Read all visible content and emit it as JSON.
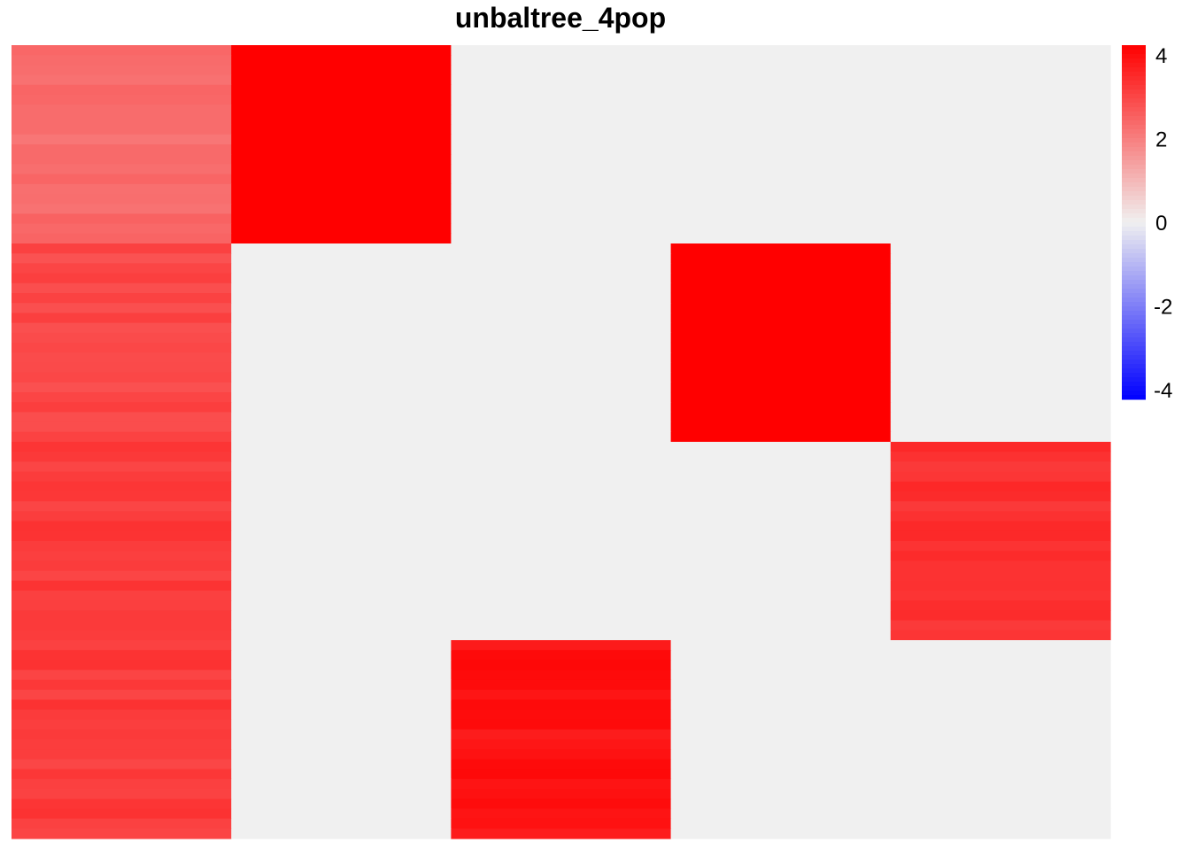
{
  "chart_data": {
    "type": "heatmap",
    "title": "unbaltree_4pop",
    "n_columns": 5,
    "row_blocks": [
      {
        "rows": 20,
        "values": [
          2.2,
          4.0,
          0,
          0,
          0
        ]
      },
      {
        "rows": 20,
        "values": [
          2.8,
          0,
          0,
          4.0,
          0
        ]
      },
      {
        "rows": 20,
        "values": [
          3.0,
          0,
          0,
          0,
          3.2
        ]
      },
      {
        "rows": 20,
        "values": [
          3.0,
          0,
          3.7,
          0,
          0
        ]
      }
    ],
    "colorbar": {
      "range": [
        -4,
        4
      ],
      "ticks": [
        "4",
        "2",
        "0",
        "-2",
        "-4"
      ],
      "low_color": "#0000FF",
      "mid_color": "#F0F0F0",
      "high_color": "#FF0000"
    },
    "legend_placement": "right",
    "background_color": "#F0F0F0"
  }
}
